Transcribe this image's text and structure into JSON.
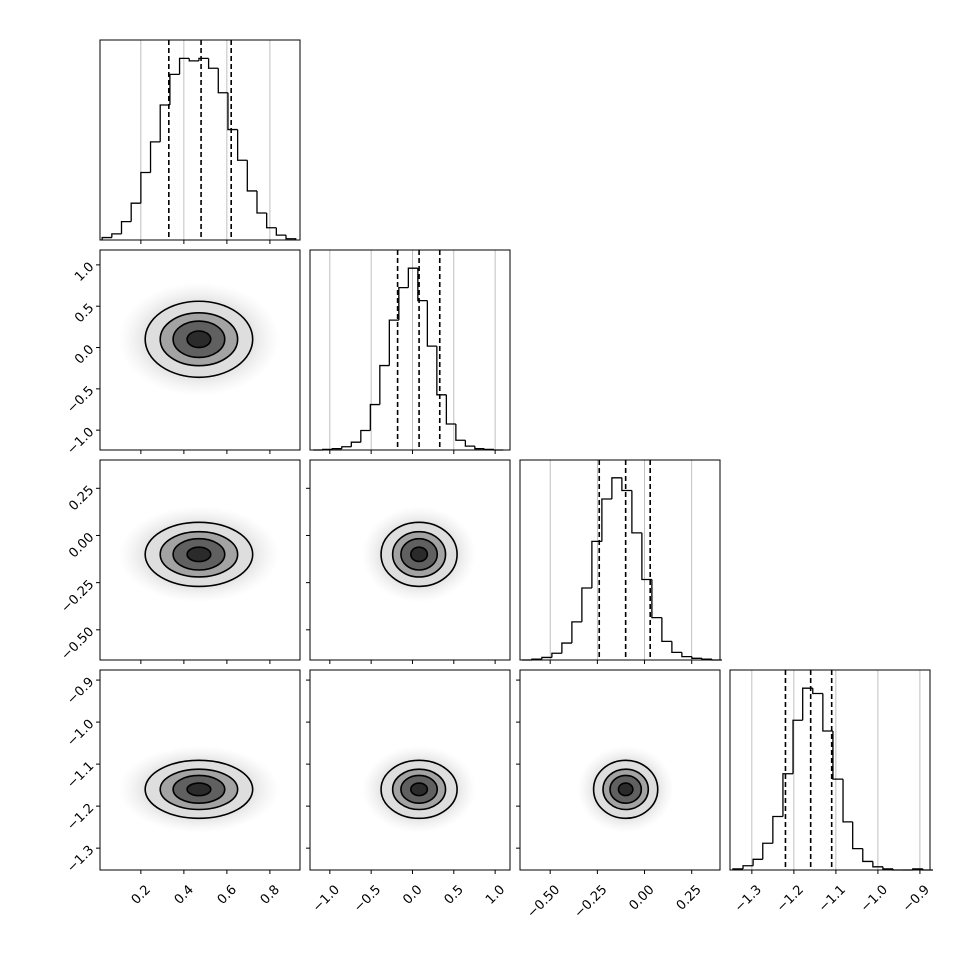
{
  "chart_data": {
    "type": "corner",
    "params": [
      {
        "lim": [
          0.01,
          0.94
        ],
        "ticks": [
          0.2,
          0.4,
          0.6,
          0.8
        ],
        "bins": [
          0.02,
          0.065,
          0.11,
          0.155,
          0.2,
          0.245,
          0.29,
          0.335,
          0.38,
          0.425,
          0.47,
          0.515,
          0.56,
          0.605,
          0.65,
          0.695,
          0.74,
          0.785,
          0.83,
          0.875,
          0.92
        ],
        "counts": [
          2,
          5,
          15,
          30,
          55,
          80,
          110,
          135,
          148,
          146,
          148,
          140,
          120,
          90,
          65,
          40,
          22,
          10,
          4,
          1
        ],
        "hist_ylim": [
          0,
          163
        ],
        "quantiles": [
          0.33,
          0.48,
          0.62
        ]
      },
      {
        "lim": [
          -1.24,
          1.18
        ],
        "ticks": [
          {
            "value": -1.0,
            "label": "−1.0"
          },
          {
            "value": -0.5,
            "label": "−0.5"
          },
          {
            "value": 0,
            "label": "0.0"
          },
          0.5,
          {
            "value": 1.0,
            "label": "1.0"
          }
        ],
        "bins": [
          -1.2,
          -1.085,
          -0.97,
          -0.855,
          -0.74,
          -0.625,
          -0.51,
          -0.395,
          -0.28,
          -0.165,
          -0.05,
          0.065,
          0.18,
          0.295,
          0.41,
          0.525,
          0.64,
          0.755,
          0.87,
          0.985,
          1.1
        ],
        "counts": [
          0,
          1,
          2,
          5,
          12,
          30,
          70,
          130,
          200,
          250,
          280,
          230,
          160,
          85,
          40,
          15,
          6,
          2,
          1,
          0
        ],
        "hist_ylim": [
          0,
          308
        ],
        "quantiles": [
          -0.18,
          0.08,
          0.33
        ]
      },
      {
        "lim": [
          -0.66,
          0.4
        ],
        "ticks": [
          {
            "value": -0.5,
            "label": "−0.50"
          },
          {
            "value": -0.25,
            "label": "−0.25"
          },
          {
            "value": 0,
            "label": "0.00"
          },
          0.25
        ],
        "bins": [
          -0.65,
          -0.597,
          -0.544,
          -0.491,
          -0.438,
          -0.385,
          -0.332,
          -0.279,
          -0.226,
          -0.173,
          -0.12,
          -0.067,
          -0.014,
          0.039,
          0.092,
          0.145,
          0.198,
          0.251,
          0.304,
          0.357,
          0.41
        ],
        "counts": [
          0,
          1,
          3,
          8,
          20,
          45,
          85,
          140,
          190,
          215,
          200,
          150,
          95,
          50,
          22,
          9,
          4,
          2,
          1,
          0
        ],
        "hist_ylim": [
          0,
          236
        ],
        "quantiles": [
          -0.24,
          -0.1,
          0.03
        ]
      },
      {
        "lim": [
          -1.352,
          -0.876
        ],
        "ticks": [
          {
            "value": -1.3,
            "label": "−1.3"
          },
          {
            "value": -1.2,
            "label": "−1.2"
          },
          {
            "value": -1.1,
            "label": "−1.1"
          },
          {
            "value": -1.0,
            "label": "−1.0"
          },
          {
            "value": -0.9,
            "label": "−0.9"
          }
        ],
        "bins": [
          -1.345,
          -1.321,
          -1.297,
          -1.274,
          -1.25,
          -1.226,
          -1.202,
          -1.179,
          -1.155,
          -1.131,
          -1.107,
          -1.083,
          -1.06,
          -1.036,
          -1.012,
          -0.988,
          -0.964,
          -0.941,
          -0.917,
          -0.893,
          -0.869
        ],
        "counts": [
          1,
          4,
          10,
          25,
          50,
          90,
          140,
          170,
          165,
          130,
          85,
          45,
          20,
          8,
          3,
          1,
          0,
          0,
          1,
          0
        ],
        "hist_ylim": [
          0,
          187
        ],
        "quantiles": [
          -1.22,
          -1.16,
          -1.11
        ]
      }
    ],
    "pairs": [
      {
        "x": 0,
        "y": 1,
        "center": [
          0.47,
          0.1
        ],
        "contours": [
          [
            0.055,
            0.1
          ],
          [
            0.12,
            0.22
          ],
          [
            0.18,
            0.32
          ],
          [
            0.25,
            0.46
          ]
        ]
      },
      {
        "x": 0,
        "y": 2,
        "center": [
          0.47,
          -0.1
        ],
        "contours": [
          [
            0.055,
            0.038
          ],
          [
            0.12,
            0.083
          ],
          [
            0.18,
            0.12
          ],
          [
            0.25,
            0.17
          ]
        ]
      },
      {
        "x": 1,
        "y": 2,
        "center": [
          0.08,
          -0.1
        ],
        "contours": [
          [
            0.1,
            0.038
          ],
          [
            0.22,
            0.083
          ],
          [
            0.32,
            0.12
          ],
          [
            0.46,
            0.17
          ]
        ]
      },
      {
        "x": 0,
        "y": 3,
        "center": [
          0.47,
          -1.16
        ],
        "contours": [
          [
            0.055,
            0.015
          ],
          [
            0.12,
            0.033
          ],
          [
            0.18,
            0.048
          ],
          [
            0.25,
            0.069
          ]
        ]
      },
      {
        "x": 1,
        "y": 3,
        "center": [
          0.08,
          -1.16
        ],
        "contours": [
          [
            0.1,
            0.015
          ],
          [
            0.22,
            0.033
          ],
          [
            0.32,
            0.048
          ],
          [
            0.46,
            0.069
          ]
        ]
      },
      {
        "x": 2,
        "y": 3,
        "center": [
          -0.1,
          -1.16
        ],
        "contours": [
          [
            0.038,
            0.015
          ],
          [
            0.083,
            0.033
          ],
          [
            0.12,
            0.048
          ],
          [
            0.17,
            0.069
          ]
        ]
      }
    ],
    "grid": true
  }
}
